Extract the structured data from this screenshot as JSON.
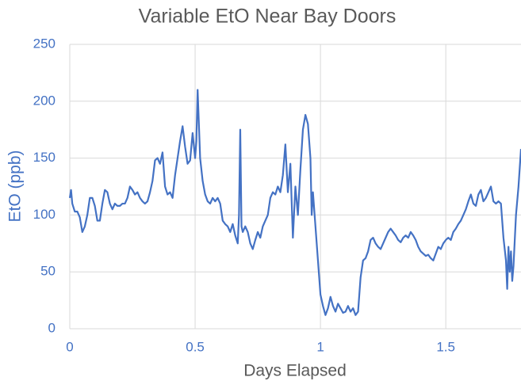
{
  "chart_data": {
    "type": "line",
    "title": "Variable EtO Near Bay Doors",
    "x_label": "Days Elapsed",
    "y_label": "EtO (ppb)",
    "xlim": [
      0,
      1.8
    ],
    "xticks": [
      0,
      0.5,
      1,
      1.5
    ],
    "ylim": [
      0,
      250
    ],
    "yticks": [
      0,
      50,
      100,
      150,
      200,
      250
    ],
    "grid": true,
    "x": [
      0,
      0.005,
      0.01,
      0.02,
      0.03,
      0.04,
      0.05,
      0.06,
      0.07,
      0.08,
      0.09,
      0.1,
      0.11,
      0.12,
      0.13,
      0.14,
      0.15,
      0.16,
      0.17,
      0.18,
      0.19,
      0.2,
      0.21,
      0.22,
      0.23,
      0.24,
      0.25,
      0.26,
      0.27,
      0.28,
      0.29,
      0.3,
      0.31,
      0.32,
      0.33,
      0.34,
      0.35,
      0.36,
      0.37,
      0.38,
      0.39,
      0.4,
      0.41,
      0.42,
      0.43,
      0.44,
      0.45,
      0.46,
      0.47,
      0.48,
      0.49,
      0.5,
      0.505,
      0.51,
      0.515,
      0.52,
      0.53,
      0.54,
      0.55,
      0.56,
      0.57,
      0.58,
      0.59,
      0.6,
      0.61,
      0.62,
      0.63,
      0.64,
      0.65,
      0.66,
      0.67,
      0.675,
      0.68,
      0.685,
      0.69,
      0.7,
      0.71,
      0.72,
      0.73,
      0.74,
      0.75,
      0.76,
      0.77,
      0.78,
      0.79,
      0.8,
      0.81,
      0.82,
      0.83,
      0.84,
      0.85,
      0.86,
      0.87,
      0.88,
      0.89,
      0.9,
      0.91,
      0.92,
      0.93,
      0.94,
      0.95,
      0.96,
      0.965,
      0.97,
      0.98,
      0.99,
      1,
      1.01,
      1.02,
      1.03,
      1.04,
      1.05,
      1.06,
      1.07,
      1.08,
      1.09,
      1.1,
      1.11,
      1.12,
      1.13,
      1.14,
      1.15,
      1.16,
      1.17,
      1.18,
      1.19,
      1.2,
      1.21,
      1.22,
      1.23,
      1.24,
      1.25,
      1.26,
      1.27,
      1.28,
      1.29,
      1.3,
      1.31,
      1.32,
      1.33,
      1.34,
      1.35,
      1.36,
      1.37,
      1.38,
      1.39,
      1.4,
      1.41,
      1.42,
      1.43,
      1.44,
      1.45,
      1.46,
      1.47,
      1.48,
      1.49,
      1.5,
      1.51,
      1.52,
      1.53,
      1.54,
      1.55,
      1.56,
      1.57,
      1.58,
      1.59,
      1.6,
      1.61,
      1.62,
      1.63,
      1.64,
      1.65,
      1.66,
      1.67,
      1.68,
      1.69,
      1.7,
      1.71,
      1.72,
      1.73,
      1.74,
      1.745,
      1.75,
      1.755,
      1.76,
      1.765,
      1.77,
      1.78,
      1.79,
      1.8
    ],
    "series": [
      {
        "name": "EtO",
        "color": "#4472c4",
        "values": [
          115,
          122,
          110,
          103,
          103,
          98,
          85,
          90,
          100,
          115,
          115,
          108,
          95,
          95,
          110,
          122,
          120,
          110,
          105,
          110,
          108,
          108,
          110,
          110,
          115,
          125,
          122,
          118,
          120,
          115,
          112,
          110,
          112,
          120,
          130,
          148,
          150,
          145,
          155,
          125,
          118,
          120,
          115,
          135,
          150,
          165,
          178,
          160,
          145,
          148,
          172,
          150,
          165,
          210,
          180,
          150,
          130,
          118,
          112,
          110,
          115,
          112,
          115,
          110,
          95,
          92,
          90,
          85,
          92,
          82,
          75,
          100,
          175,
          90,
          85,
          90,
          85,
          75,
          70,
          78,
          85,
          80,
          90,
          95,
          100,
          115,
          120,
          118,
          125,
          120,
          135,
          162,
          120,
          145,
          80,
          125,
          100,
          140,
          175,
          188,
          180,
          150,
          100,
          120,
          90,
          60,
          30,
          20,
          12,
          18,
          28,
          20,
          15,
          22,
          18,
          14,
          15,
          20,
          15,
          18,
          12,
          15,
          45,
          60,
          62,
          68,
          78,
          80,
          75,
          72,
          70,
          75,
          80,
          85,
          88,
          85,
          82,
          78,
          76,
          80,
          82,
          80,
          85,
          82,
          78,
          72,
          68,
          66,
          64,
          65,
          62,
          60,
          66,
          72,
          70,
          75,
          78,
          80,
          78,
          85,
          88,
          92,
          95,
          100,
          105,
          112,
          118,
          110,
          108,
          118,
          122,
          112,
          115,
          120,
          125,
          112,
          110,
          112,
          110,
          80,
          60,
          35,
          72,
          50,
          68,
          42,
          55,
          100,
          125,
          158
        ]
      }
    ]
  }
}
